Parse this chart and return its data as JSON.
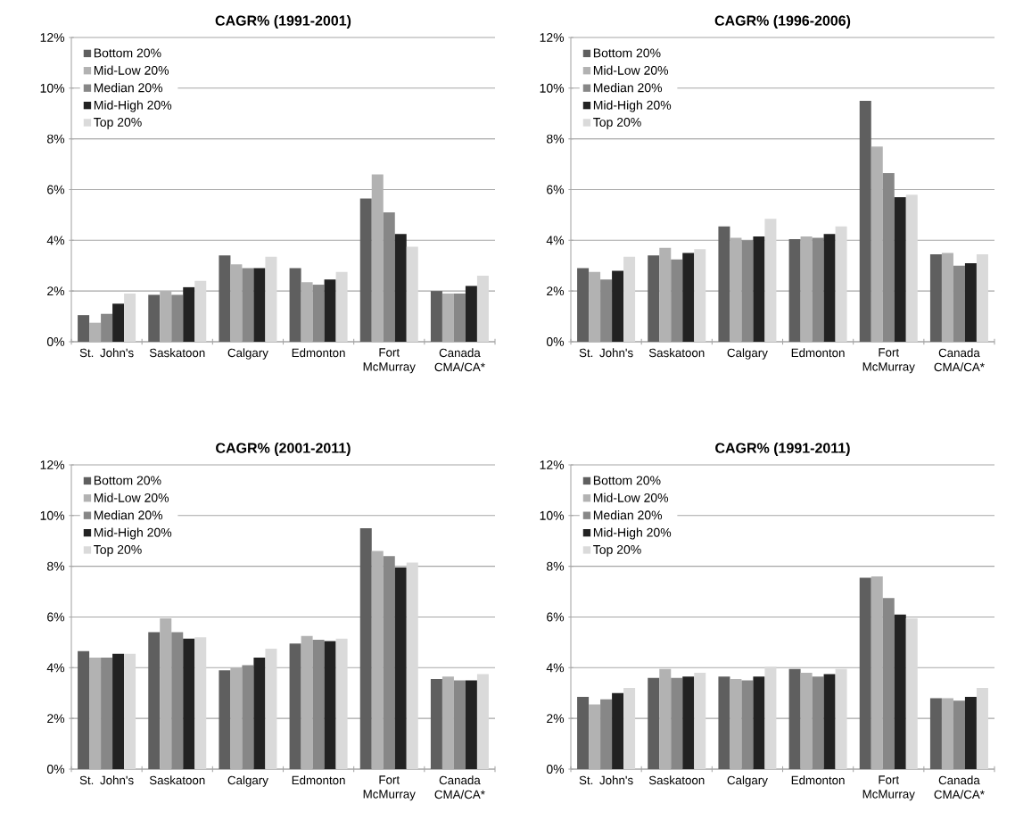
{
  "chart_data": [
    {
      "type": "bar",
      "title": "CAGR% (1991-2001)",
      "categories": [
        "St. John's",
        "Saskatoon",
        "Calgary",
        "Edmonton",
        "Fort McMurray",
        "Canada CMA/CA*"
      ],
      "series": [
        {
          "name": "Bottom 20%",
          "color": "#5f5f5f",
          "values": [
            1.05,
            1.85,
            3.4,
            2.9,
            5.65,
            2.0
          ]
        },
        {
          "name": "Mid-Low 20%",
          "color": "#b2b2b2",
          "values": [
            0.75,
            2.0,
            3.05,
            2.35,
            6.6,
            1.9
          ]
        },
        {
          "name": "Median 20%",
          "color": "#878787",
          "values": [
            1.1,
            1.85,
            2.9,
            2.25,
            5.1,
            1.9
          ]
        },
        {
          "name": "Mid-High 20%",
          "color": "#222222",
          "values": [
            1.5,
            2.15,
            2.9,
            2.45,
            4.25,
            2.2
          ]
        },
        {
          "name": "Top 20%",
          "color": "#dadada",
          "values": [
            1.9,
            2.4,
            3.35,
            2.75,
            3.75,
            2.6
          ]
        }
      ],
      "ylim": [
        0,
        12
      ],
      "yticks": [
        {
          "value": 0,
          "label": "0%"
        },
        {
          "value": 2,
          "label": "2%"
        },
        {
          "value": 4,
          "label": "4%"
        },
        {
          "value": 6,
          "label": "6%"
        },
        {
          "value": 8,
          "label": "8%"
        },
        {
          "value": 10,
          "label": "10%"
        },
        {
          "value": 12,
          "label": "12%"
        }
      ],
      "grid": "y",
      "legend": "top left"
    },
    {
      "type": "bar",
      "title": "CAGR% (1996-2006)",
      "categories": [
        "St. John's",
        "Saskatoon",
        "Calgary",
        "Edmonton",
        "Fort McMurray",
        "Canada CMA/CA*"
      ],
      "series": [
        {
          "name": "Bottom 20%",
          "color": "#5f5f5f",
          "values": [
            2.9,
            3.4,
            4.55,
            4.05,
            9.5,
            3.45
          ]
        },
        {
          "name": "Mid-Low 20%",
          "color": "#b2b2b2",
          "values": [
            2.75,
            3.7,
            4.1,
            4.15,
            7.7,
            3.5
          ]
        },
        {
          "name": "Median 20%",
          "color": "#878787",
          "values": [
            2.45,
            3.25,
            4.0,
            4.1,
            6.65,
            3.0
          ]
        },
        {
          "name": "Mid-High 20%",
          "color": "#222222",
          "values": [
            2.8,
            3.5,
            4.15,
            4.25,
            5.7,
            3.1
          ]
        },
        {
          "name": "Top 20%",
          "color": "#dadada",
          "values": [
            3.35,
            3.65,
            4.85,
            4.55,
            5.8,
            3.45
          ]
        }
      ],
      "ylim": [
        0,
        12
      ],
      "yticks": [
        {
          "value": 0,
          "label": "0%"
        },
        {
          "value": 2,
          "label": "2%"
        },
        {
          "value": 4,
          "label": "4%"
        },
        {
          "value": 6,
          "label": "6%"
        },
        {
          "value": 8,
          "label": "8%"
        },
        {
          "value": 10,
          "label": "10%"
        },
        {
          "value": 12,
          "label": "12%"
        }
      ],
      "grid": "y",
      "legend": "top left"
    },
    {
      "type": "bar",
      "title": "CAGR% (2001-2011)",
      "categories": [
        "St. John's",
        "Saskatoon",
        "Calgary",
        "Edmonton",
        "Fort McMurray",
        "Canada CMA/CA*"
      ],
      "series": [
        {
          "name": "Bottom 20%",
          "color": "#5f5f5f",
          "values": [
            4.65,
            5.4,
            3.9,
            4.95,
            9.5,
            3.55
          ]
        },
        {
          "name": "Mid-Low 20%",
          "color": "#b2b2b2",
          "values": [
            4.4,
            5.95,
            4.0,
            5.25,
            8.6,
            3.65
          ]
        },
        {
          "name": "Median 20%",
          "color": "#878787",
          "values": [
            4.4,
            5.4,
            4.1,
            5.1,
            8.4,
            3.5
          ]
        },
        {
          "name": "Mid-High 20%",
          "color": "#222222",
          "values": [
            4.55,
            5.15,
            4.4,
            5.05,
            7.95,
            3.5
          ]
        },
        {
          "name": "Top 20%",
          "color": "#dadada",
          "values": [
            4.55,
            5.2,
            4.75,
            5.15,
            8.15,
            3.75
          ]
        }
      ],
      "ylim": [
        0,
        12
      ],
      "yticks": [
        {
          "value": 0,
          "label": "0%"
        },
        {
          "value": 2,
          "label": "2%"
        },
        {
          "value": 4,
          "label": "4%"
        },
        {
          "value": 6,
          "label": "6%"
        },
        {
          "value": 8,
          "label": "8%"
        },
        {
          "value": 10,
          "label": "10%"
        },
        {
          "value": 12,
          "label": "12%"
        }
      ],
      "grid": "y",
      "legend": "top left"
    },
    {
      "type": "bar",
      "title": "CAGR% (1991-2011)",
      "categories": [
        "St. John's",
        "Saskatoon",
        "Calgary",
        "Edmonton",
        "Fort McMurray",
        "Canada CMA/CA*"
      ],
      "series": [
        {
          "name": "Bottom 20%",
          "color": "#5f5f5f",
          "values": [
            2.85,
            3.6,
            3.65,
            3.95,
            7.55,
            2.8
          ]
        },
        {
          "name": "Mid-Low 20%",
          "color": "#b2b2b2",
          "values": [
            2.55,
            3.95,
            3.55,
            3.8,
            7.6,
            2.8
          ]
        },
        {
          "name": "Median 20%",
          "color": "#878787",
          "values": [
            2.75,
            3.6,
            3.5,
            3.65,
            6.75,
            2.7
          ]
        },
        {
          "name": "Mid-High 20%",
          "color": "#222222",
          "values": [
            3.0,
            3.65,
            3.65,
            3.75,
            6.1,
            2.85
          ]
        },
        {
          "name": "Top 20%",
          "color": "#dadada",
          "values": [
            3.2,
            3.8,
            4.05,
            3.95,
            5.95,
            3.2
          ]
        }
      ],
      "ylim": [
        0,
        12
      ],
      "yticks": [
        {
          "value": 0,
          "label": "0%"
        },
        {
          "value": 2,
          "label": "2%"
        },
        {
          "value": 4,
          "label": "4%"
        },
        {
          "value": 6,
          "label": "6%"
        },
        {
          "value": 8,
          "label": "8%"
        },
        {
          "value": 10,
          "label": "10%"
        },
        {
          "value": 12,
          "label": "12%"
        }
      ],
      "grid": "y",
      "legend": "top left"
    }
  ]
}
